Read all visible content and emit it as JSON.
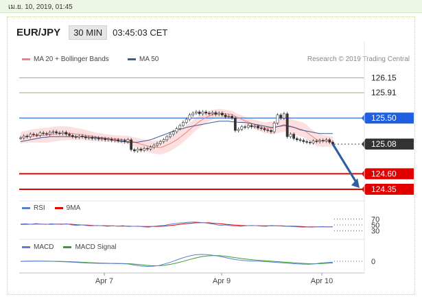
{
  "timestamp": "เม.ย. 10, 2019, 01:45",
  "header": {
    "pair": "EUR/JPY",
    "interval": "30 MIN",
    "time": "03:45:03 CET"
  },
  "credit": "Research © 2019 Trading Central",
  "legend": {
    "ma20": "MA 20 + Bollinger Bands",
    "ma50": "MA 50",
    "rsi": "RSI",
    "rsi_ma": "9MA",
    "macd": "MACD",
    "macd_signal": "MACD Signal"
  },
  "colors": {
    "ma20": "#f08080",
    "ma50": "#3a5a9a",
    "band": "#fbd9d9",
    "resistance_line": "#5b8fe8",
    "support_line": "#e00000",
    "target_line": "#7cc46a",
    "current_tag": "#333333",
    "arrow": "#2f5f9e"
  },
  "chart_data": [
    {
      "type": "line",
      "series_type": "candlestick",
      "x_ticks": [
        "Apr 7",
        "Apr 9",
        "Apr 10"
      ],
      "price_levels": [
        {
          "value": "126.15",
          "kind": "target"
        },
        {
          "value": "125.91",
          "kind": "target"
        },
        {
          "value": "125.50",
          "kind": "resistance"
        },
        {
          "value": "125.08",
          "kind": "current"
        },
        {
          "value": "124.60",
          "kind": "support"
        },
        {
          "value": "124.35",
          "kind": "support"
        }
      ],
      "ylim": [
        124.25,
        126.3
      ],
      "close": [
        125.18,
        125.21,
        125.2,
        125.24,
        125.23,
        125.22,
        125.26,
        125.25,
        125.24,
        125.27,
        125.28,
        125.26,
        125.25,
        125.27,
        125.24,
        125.22,
        125.2,
        125.19,
        125.21,
        125.2,
        125.18,
        125.19,
        125.17,
        125.18,
        125.16,
        125.17,
        125.15,
        125.16,
        125.14,
        125.15,
        125.13,
        125.14,
        125.12,
        125.15,
        124.99,
        124.97,
        125.0,
        124.98,
        125.01,
        125.0,
        125.03,
        125.06,
        125.09,
        125.12,
        125.15,
        125.2,
        125.24,
        125.28,
        125.33,
        125.38,
        125.43,
        125.48,
        125.55,
        125.58,
        125.6,
        125.57,
        125.6,
        125.58,
        125.57,
        125.59,
        125.56,
        125.58,
        125.55,
        125.52,
        125.53,
        125.5,
        125.3,
        125.32,
        125.36,
        125.35,
        125.38,
        125.36,
        125.37,
        125.34,
        125.33,
        125.31,
        125.3,
        125.28,
        125.42,
        125.55,
        125.5,
        125.57,
        125.2,
        125.24,
        125.17,
        125.15,
        125.14,
        125.12,
        125.11,
        125.1,
        125.13,
        125.12,
        125.14,
        125.13,
        125.15,
        125.11,
        125.08
      ],
      "ma50": [
        125.12,
        125.13,
        125.14,
        125.15,
        125.16,
        125.17,
        125.18,
        125.19,
        125.19,
        125.2,
        125.2,
        125.2,
        125.2,
        125.2,
        125.2,
        125.2,
        125.2,
        125.2,
        125.2,
        125.2,
        125.2,
        125.19,
        125.19,
        125.19,
        125.18,
        125.18,
        125.17,
        125.16,
        125.15,
        125.14,
        125.13,
        125.12,
        125.12,
        125.11,
        125.11,
        125.11,
        125.11,
        125.12,
        125.13,
        125.14,
        125.15,
        125.17,
        125.19,
        125.21,
        125.23,
        125.25,
        125.27,
        125.29,
        125.3,
        125.32,
        125.33,
        125.35,
        125.36,
        125.37,
        125.38,
        125.39,
        125.4,
        125.41,
        125.42,
        125.43,
        125.44,
        125.45,
        125.45,
        125.45,
        125.45,
        125.44,
        125.44,
        125.43,
        125.43,
        125.43,
        125.42,
        125.41,
        125.4,
        125.39,
        125.38,
        125.37,
        125.36,
        125.35,
        125.35,
        125.36,
        125.37,
        125.38,
        125.37,
        125.36,
        125.35,
        125.33,
        125.31,
        125.3,
        125.29,
        125.28,
        125.27,
        125.26,
        125.25,
        125.25,
        125.25,
        125.25,
        125.25
      ]
    },
    {
      "type": "line",
      "title": "RSI",
      "ticks": [
        "70",
        "50",
        "30"
      ],
      "ylim": [
        20,
        80
      ],
      "series": [
        {
          "name": "RSI",
          "values": [
            54,
            55,
            53,
            56,
            54,
            52,
            55,
            54,
            52,
            55,
            50,
            48,
            50,
            47,
            46,
            48,
            46,
            44,
            46,
            45,
            47,
            43,
            44,
            45,
            42,
            40,
            44,
            46,
            48,
            52,
            55,
            58,
            60,
            62,
            63,
            61,
            59,
            56,
            52,
            48,
            50,
            47,
            45,
            44,
            46,
            48,
            47,
            45,
            44,
            48,
            46,
            45,
            44,
            43,
            42,
            40,
            41,
            40,
            42,
            43,
            41,
            42
          ]
        },
        {
          "name": "9MA",
          "values": [
            52,
            53,
            53,
            54,
            54,
            53,
            53,
            54,
            54,
            54,
            53,
            51,
            50,
            49,
            48,
            47,
            47,
            46,
            46,
            45,
            45,
            45,
            44,
            44,
            43,
            43,
            43,
            44,
            45,
            47,
            49,
            52,
            55,
            57,
            59,
            60,
            60,
            59,
            57,
            55,
            53,
            51,
            49,
            48,
            47,
            47,
            47,
            46,
            46,
            46,
            46,
            46,
            45,
            45,
            44,
            43,
            42,
            42,
            42,
            42,
            42,
            42
          ]
        }
      ]
    },
    {
      "type": "line",
      "title": "MACD",
      "ticks": [
        "0"
      ],
      "ylim": [
        -1.2,
        1.2
      ],
      "series": [
        {
          "name": "MACD",
          "values": [
            0,
            0.02,
            0.03,
            0.02,
            0.01,
            0,
            -0.02,
            -0.05,
            -0.08,
            -0.12,
            -0.16,
            -0.2,
            -0.22,
            -0.24,
            -0.25,
            -0.26,
            -0.27,
            -0.28,
            -0.32,
            -0.45,
            -0.55,
            -0.6,
            -0.58,
            -0.5,
            -0.3,
            -0.1,
            0.15,
            0.4,
            0.6,
            0.75,
            0.8,
            0.78,
            0.7,
            0.6,
            0.45,
            0.3,
            0.18,
            0.1,
            0.05,
            0.02,
            0,
            -0.05,
            -0.1,
            -0.15,
            -0.2,
            -0.25,
            -0.3,
            -0.33,
            -0.35,
            -0.3,
            -0.2,
            -0.15,
            -0.1
          ]
        },
        {
          "name": "MACD Signal",
          "values": [
            -0.02,
            0,
            0.01,
            0.02,
            0.02,
            0.01,
            0,
            -0.02,
            -0.04,
            -0.07,
            -0.1,
            -0.14,
            -0.17,
            -0.2,
            -0.22,
            -0.24,
            -0.25,
            -0.26,
            -0.28,
            -0.33,
            -0.4,
            -0.47,
            -0.52,
            -0.52,
            -0.46,
            -0.35,
            -0.2,
            -0.02,
            0.18,
            0.36,
            0.52,
            0.62,
            0.67,
            0.66,
            0.6,
            0.5,
            0.4,
            0.3,
            0.22,
            0.15,
            0.1,
            0.05,
            0,
            -0.05,
            -0.1,
            -0.15,
            -0.2,
            -0.24,
            -0.28,
            -0.29,
            -0.27,
            -0.23,
            -0.19
          ]
        }
      ]
    }
  ]
}
